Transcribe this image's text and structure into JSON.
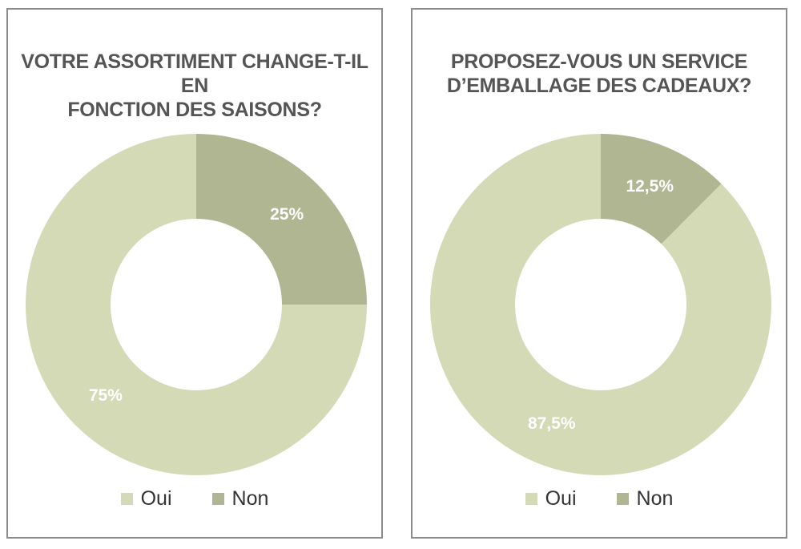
{
  "colors": {
    "oui": "#d4d9b6",
    "non": "#b0b592",
    "label": "#ffffff"
  },
  "chart_data": [
    {
      "type": "pie",
      "variant": "donut",
      "title_lines": [
        "VOTRE ASSORTIMENT CHANGE-T-IL EN",
        "FONCTION DES SAISONS?"
      ],
      "categories": [
        "Oui",
        "Non"
      ],
      "values": [
        75,
        25
      ],
      "data_labels": [
        "75%",
        "25%"
      ],
      "legend": {
        "position": "bottom",
        "entries": [
          "Oui",
          "Non"
        ]
      }
    },
    {
      "type": "pie",
      "variant": "donut",
      "title_lines": [
        "PROPOSEZ-VOUS UN SERVICE",
        "D’EMBALLAGE DES CADEAUX?"
      ],
      "categories": [
        "Oui",
        "Non"
      ],
      "values": [
        87.5,
        12.5
      ],
      "data_labels": [
        "87,5%",
        "12,5%"
      ],
      "legend": {
        "position": "bottom",
        "entries": [
          "Oui",
          "Non"
        ]
      }
    }
  ]
}
